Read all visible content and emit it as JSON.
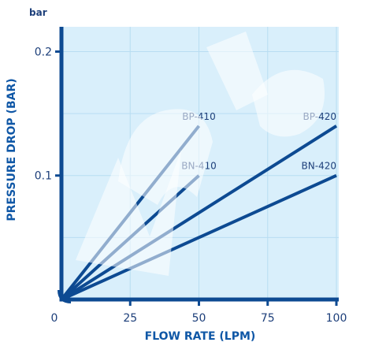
{
  "chart_data": {
    "type": "line",
    "title": "",
    "xlabel": "FLOW RATE (LPM)",
    "ylabel": "PRESSURE DROP (BAR)",
    "y_unit": "bar",
    "xlim": [
      0,
      100
    ],
    "ylim": [
      0,
      0.22
    ],
    "x_ticks": [
      {
        "value": 0,
        "label": "0"
      },
      {
        "value": 25,
        "label": "25"
      },
      {
        "value": 50,
        "label": "50"
      },
      {
        "value": 75,
        "label": "75"
      },
      {
        "value": 100,
        "label": "100"
      }
    ],
    "y_ticks": [
      {
        "value": 0.1,
        "label": "0.1"
      },
      {
        "value": 0.2,
        "label": "0.2"
      }
    ],
    "grid": true,
    "legend": "none",
    "series": [
      {
        "name": "BP-410",
        "x": [
          0,
          50
        ],
        "y": [
          0,
          0.14
        ]
      },
      {
        "name": "BN-410",
        "x": [
          0,
          50
        ],
        "y": [
          0,
          0.1
        ]
      },
      {
        "name": "BP-420",
        "x": [
          0,
          100
        ],
        "y": [
          0,
          0.14
        ]
      },
      {
        "name": "BN-420",
        "x": [
          0,
          100
        ],
        "y": [
          0,
          0.1
        ]
      }
    ],
    "colors": {
      "line": "#0d4a92",
      "axis": "#0d4a92",
      "plot_bg": "#d9effb",
      "grid": "#b8ddf2",
      "text": "#1d3f7a",
      "title_text": "#0f57a6"
    }
  }
}
